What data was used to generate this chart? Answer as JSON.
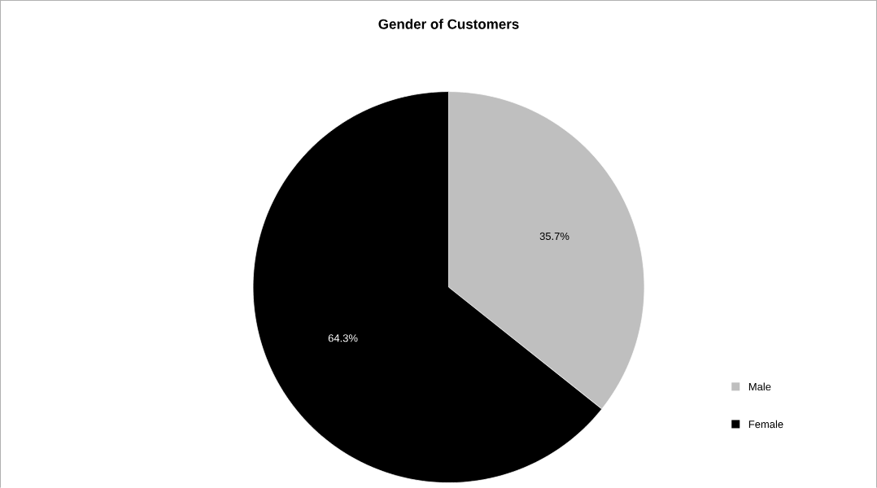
{
  "chart_data": {
    "type": "pie",
    "title": "Gender of Customers",
    "categories": [
      "Male",
      "Female"
    ],
    "values": [
      35.7,
      64.3
    ],
    "colors": [
      "#bfbfbf",
      "#000000"
    ],
    "value_labels": [
      "35.7%",
      "64.3%"
    ],
    "legend": "right"
  }
}
